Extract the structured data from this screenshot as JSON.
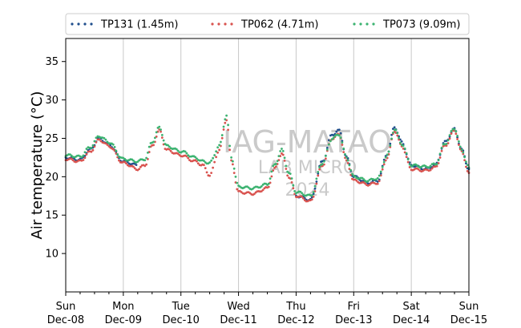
{
  "chart_data": {
    "type": "scatter",
    "ylabel": "Air temperature (°C)",
    "xlabel": "",
    "ylim": [
      5,
      38
    ],
    "yticks": [
      10,
      15,
      20,
      25,
      30,
      35
    ],
    "xlim": [
      "2024-12-08T00:00",
      "2024-12-15T00:00"
    ],
    "x_ticks": [
      {
        "day": "Sun",
        "date": "Dec-08"
      },
      {
        "day": "Mon",
        "date": "Dec-09"
      },
      {
        "day": "Tue",
        "date": "Dec-10"
      },
      {
        "day": "Wed",
        "date": "Dec-11"
      },
      {
        "day": "Thu",
        "date": "Dec-12"
      },
      {
        "day": "Fri",
        "date": "Dec-13"
      },
      {
        "day": "Sat",
        "date": "Dec-14"
      },
      {
        "day": "Sun",
        "date": "Dec-15"
      }
    ],
    "grid": "vertical",
    "legend_position": "top",
    "watermark": [
      "IAG-MATAO",
      "LAB MICRO",
      "2024"
    ],
    "series": [
      {
        "name": "TP131 (1.45m)",
        "color": "#1f4e8c",
        "points": [
          [
            "2024-12-08T00:00",
            22.5
          ],
          [
            "2024-12-08T06:00",
            22.2
          ],
          [
            "2024-12-08T10:00",
            23.5
          ],
          [
            "2024-12-08T14:00",
            25.0
          ],
          [
            "2024-12-08T18:00",
            24.2
          ],
          [
            "2024-12-09T00:00",
            22.0
          ],
          [
            "2024-12-09T06:00",
            21.5
          ],
          [
            "2024-12-12T00:00",
            17.5
          ],
          [
            "2024-12-12T06:00",
            17.0
          ],
          [
            "2024-12-12T11:00",
            22.0
          ],
          [
            "2024-12-12T15:00",
            25.5
          ],
          [
            "2024-12-12T18:00",
            26.0
          ],
          [
            "2024-12-12T21:00",
            22.5
          ],
          [
            "2024-12-13T00:00",
            20.0
          ],
          [
            "2024-12-13T06:00",
            19.2
          ],
          [
            "2024-12-13T10:00",
            19.5
          ],
          [
            "2024-12-13T14:00",
            23.0
          ],
          [
            "2024-12-13T17:00",
            26.5
          ],
          [
            "2024-12-13T20:00",
            24.5
          ],
          [
            "2024-12-14T00:00",
            21.5
          ],
          [
            "2024-12-14T06:00",
            21.0
          ],
          [
            "2024-12-14T10:00",
            21.5
          ],
          [
            "2024-12-14T14:00",
            24.5
          ],
          [
            "2024-12-14T18:00",
            26.2
          ],
          [
            "2024-12-14T21:00",
            23.5
          ],
          [
            "2024-12-15T00:00",
            21.0
          ]
        ]
      },
      {
        "name": "TP062 (4.71m)",
        "color": "#d9534f",
        "points": [
          [
            "2024-12-08T00:00",
            22.3
          ],
          [
            "2024-12-08T06:00",
            22.0
          ],
          [
            "2024-12-08T10:00",
            23.2
          ],
          [
            "2024-12-08T14:00",
            24.8
          ],
          [
            "2024-12-08T18:00",
            24.0
          ],
          [
            "2024-12-09T00:00",
            21.8
          ],
          [
            "2024-12-09T06:00",
            21.0
          ],
          [
            "2024-12-09T09:00",
            21.5
          ],
          [
            "2024-12-09T12:00",
            24.0
          ],
          [
            "2024-12-09T15:00",
            26.0
          ],
          [
            "2024-12-09T18:00",
            23.5
          ],
          [
            "2024-12-10T00:00",
            22.8
          ],
          [
            "2024-12-10T06:00",
            22.0
          ],
          [
            "2024-12-10T09:00",
            21.5
          ],
          [
            "2024-12-10T12:00",
            20.2
          ],
          [
            "2024-12-10T16:00",
            23.5
          ],
          [
            "2024-12-10T19:00",
            27.5
          ],
          [
            "2024-12-10T21:00",
            22.0
          ],
          [
            "2024-12-11T00:00",
            18.0
          ],
          [
            "2024-12-11T06:00",
            17.8
          ],
          [
            "2024-12-11T12:00",
            18.5
          ],
          [
            "2024-12-11T15:00",
            21.0
          ],
          [
            "2024-12-11T18:00",
            23.0
          ],
          [
            "2024-12-11T21:00",
            20.0
          ],
          [
            "2024-12-12T00:00",
            17.5
          ],
          [
            "2024-12-12T06:00",
            16.8
          ],
          [
            "2024-12-12T11:00",
            21.5
          ],
          [
            "2024-12-12T15:00",
            25.0
          ],
          [
            "2024-12-12T18:00",
            25.5
          ],
          [
            "2024-12-12T21:00",
            22.0
          ],
          [
            "2024-12-13T00:00",
            19.5
          ],
          [
            "2024-12-13T06:00",
            19.0
          ],
          [
            "2024-12-13T10:00",
            19.2
          ],
          [
            "2024-12-13T14:00",
            22.5
          ],
          [
            "2024-12-13T17:00",
            26.0
          ],
          [
            "2024-12-13T20:00",
            24.0
          ],
          [
            "2024-12-14T00:00",
            21.0
          ],
          [
            "2024-12-14T06:00",
            20.8
          ],
          [
            "2024-12-14T10:00",
            21.2
          ],
          [
            "2024-12-14T14:00",
            24.0
          ],
          [
            "2024-12-14T18:00",
            26.0
          ],
          [
            "2024-12-14T21:00",
            23.2
          ],
          [
            "2024-12-15T00:00",
            20.5
          ]
        ]
      },
      {
        "name": "TP073 (9.09m)",
        "color": "#3cb371",
        "points": [
          [
            "2024-12-08T00:00",
            22.8
          ],
          [
            "2024-12-08T06:00",
            22.6
          ],
          [
            "2024-12-08T10:00",
            23.8
          ],
          [
            "2024-12-08T14:00",
            25.3
          ],
          [
            "2024-12-08T18:00",
            24.5
          ],
          [
            "2024-12-09T00:00",
            22.3
          ],
          [
            "2024-12-09T06:00",
            22.0
          ],
          [
            "2024-12-09T09:00",
            22.3
          ],
          [
            "2024-12-09T12:00",
            24.5
          ],
          [
            "2024-12-09T15:00",
            26.4
          ],
          [
            "2024-12-09T18:00",
            24.0
          ],
          [
            "2024-12-10T00:00",
            23.3
          ],
          [
            "2024-12-10T06:00",
            22.5
          ],
          [
            "2024-12-10T09:00",
            22.0
          ],
          [
            "2024-12-10T12:00",
            21.8
          ],
          [
            "2024-12-10T16:00",
            24.0
          ],
          [
            "2024-12-10T19:00",
            28.0
          ],
          [
            "2024-12-10T21:00",
            22.5
          ],
          [
            "2024-12-11T00:00",
            18.7
          ],
          [
            "2024-12-11T06:00",
            18.5
          ],
          [
            "2024-12-11T12:00",
            19.0
          ],
          [
            "2024-12-11T15:00",
            21.5
          ],
          [
            "2024-12-11T18:00",
            23.5
          ],
          [
            "2024-12-11T21:00",
            20.5
          ],
          [
            "2024-12-12T00:00",
            18.0
          ],
          [
            "2024-12-12T06:00",
            17.5
          ],
          [
            "2024-12-12T11:00",
            21.8
          ],
          [
            "2024-12-12T15:00",
            25.0
          ],
          [
            "2024-12-12T18:00",
            25.5
          ],
          [
            "2024-12-12T21:00",
            22.5
          ],
          [
            "2024-12-13T00:00",
            20.0
          ],
          [
            "2024-12-13T06:00",
            19.5
          ],
          [
            "2024-12-13T10:00",
            19.8
          ],
          [
            "2024-12-13T14:00",
            22.8
          ],
          [
            "2024-12-13T17:00",
            26.2
          ],
          [
            "2024-12-13T20:00",
            24.3
          ],
          [
            "2024-12-14T00:00",
            21.5
          ],
          [
            "2024-12-14T06:00",
            21.3
          ],
          [
            "2024-12-14T10:00",
            21.6
          ],
          [
            "2024-12-14T14:00",
            24.3
          ],
          [
            "2024-12-14T18:00",
            26.3
          ],
          [
            "2024-12-14T21:00",
            23.5
          ],
          [
            "2024-12-15T00:00",
            21.2
          ]
        ]
      }
    ]
  }
}
